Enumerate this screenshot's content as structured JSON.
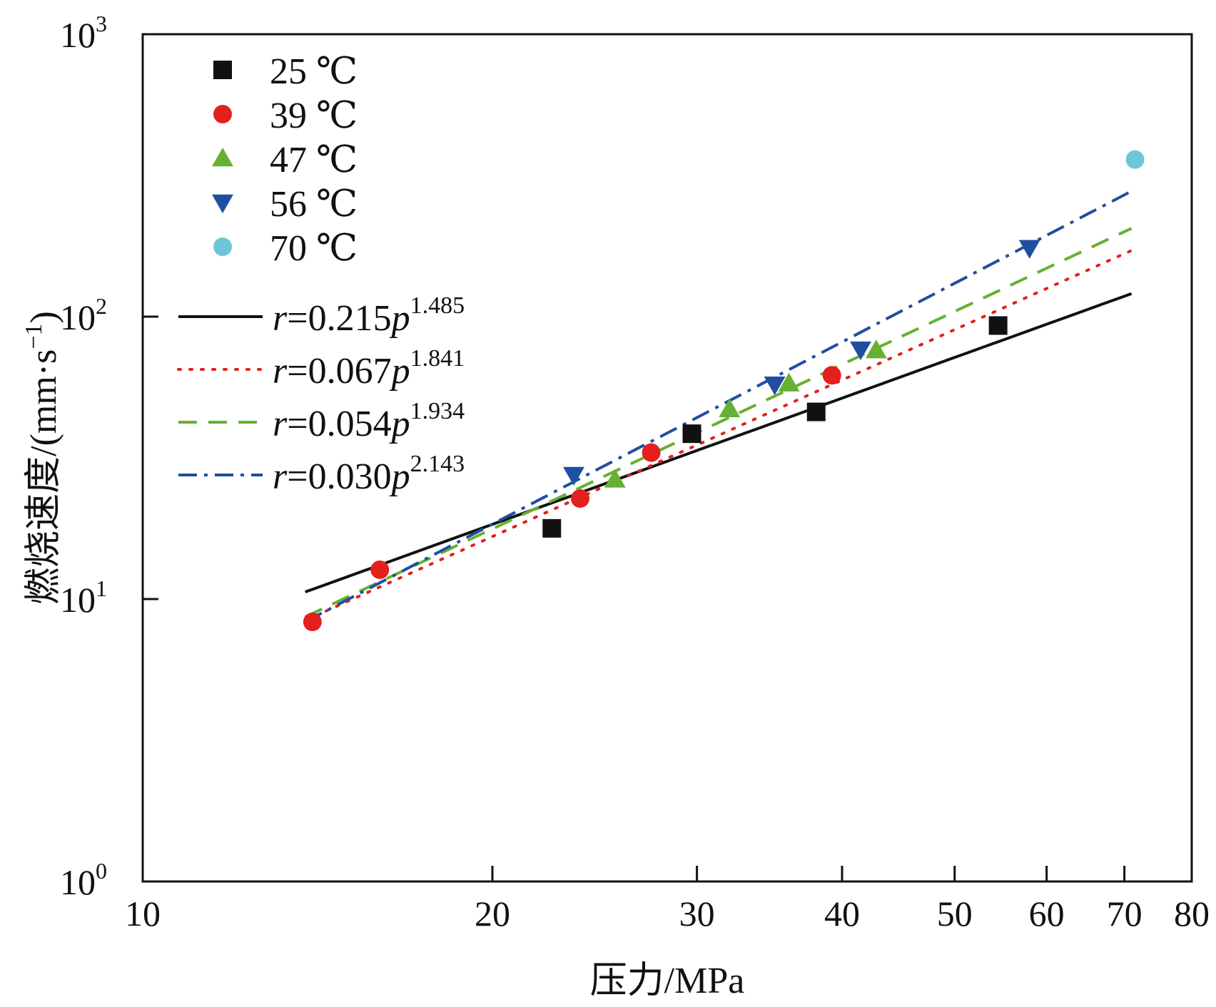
{
  "chart_data": {
    "type": "scatter",
    "title": "",
    "xlabel": "压力/MPa",
    "ylabel": "燃烧速度/(mm·s",
    "ylabel_exp": "−1",
    "ylabel_close": ")",
    "x_scale": "log",
    "y_scale": "log",
    "xlim": [
      10,
      80
    ],
    "ylim": [
      1,
      1000
    ],
    "grid": false,
    "legend_position": "top-left",
    "x_ticks": [
      {
        "value": 10,
        "label": "10"
      },
      {
        "value": 20,
        "label": "20"
      },
      {
        "value": 30,
        "label": "30"
      },
      {
        "value": 40,
        "label": "40"
      },
      {
        "value": 50,
        "label": "50"
      },
      {
        "value": 60,
        "label": "60"
      },
      {
        "value": 70,
        "label": "70"
      },
      {
        "value": 80,
        "label": "80"
      }
    ],
    "y_ticks": [
      {
        "value": 1,
        "base": "10",
        "exp": "0"
      },
      {
        "value": 10,
        "base": "10",
        "exp": "1"
      },
      {
        "value": 100,
        "base": "10",
        "exp": "2"
      },
      {
        "value": 1000,
        "base": "10",
        "exp": "3"
      }
    ],
    "series": [
      {
        "name": "25 ℃",
        "marker": "square",
        "color": "#111111",
        "points": [
          [
            22.5,
            17.8
          ],
          [
            29.7,
            38.5
          ],
          [
            38.0,
            46.0
          ],
          [
            54.5,
            93.0
          ]
        ]
      },
      {
        "name": "39 ℃",
        "marker": "circle",
        "color": "#e3201b",
        "points": [
          [
            14.0,
            8.3
          ],
          [
            16.0,
            12.7
          ],
          [
            23.8,
            22.7
          ],
          [
            27.4,
            33.0
          ],
          [
            39.2,
            62.0
          ]
        ]
      },
      {
        "name": "47 ℃",
        "marker": "triangle-up",
        "color": "#66b032",
        "points": [
          [
            25.5,
            26.5
          ],
          [
            32.0,
            47.0
          ],
          [
            36.0,
            58.0
          ],
          [
            42.8,
            76.0
          ]
        ]
      },
      {
        "name": "56 ℃",
        "marker": "triangle-down",
        "color": "#1f4fa0",
        "points": [
          [
            23.5,
            27.5
          ],
          [
            35.0,
            57.5
          ],
          [
            41.5,
            76.5
          ],
          [
            58.0,
            175.0
          ]
        ]
      },
      {
        "name": "70 ℃",
        "marker": "circle",
        "color": "#6ec6d8",
        "points": [
          [
            71.5,
            360.0
          ]
        ]
      }
    ],
    "fits": [
      {
        "label_prefix": "r",
        "label_mid": "=0.215",
        "label_var": "p",
        "label_exp": "1.485",
        "a": 0.215,
        "b": 1.485,
        "x_range": [
          13.8,
          71
        ],
        "color": "#111111",
        "dash": ""
      },
      {
        "label_prefix": "r",
        "label_mid": "=0.067",
        "label_var": "p",
        "label_exp": "1.841",
        "a": 0.067,
        "b": 1.841,
        "x_range": [
          13.8,
          71
        ],
        "color": "#e3201b",
        "dash": "3,13"
      },
      {
        "label_prefix": "r",
        "label_mid": "=0.054",
        "label_var": "p",
        "label_exp": "1.934",
        "a": 0.054,
        "b": 1.934,
        "x_range": [
          13.8,
          71
        ],
        "color": "#66b032",
        "dash": "26,16"
      },
      {
        "label_prefix": "r",
        "label_mid": "=0.030",
        "label_var": "p",
        "label_exp": "2.143",
        "a": 0.03,
        "b": 2.143,
        "x_range": [
          13.8,
          71
        ],
        "color": "#1f4fa0",
        "dash": "26,10,5,10"
      }
    ]
  }
}
